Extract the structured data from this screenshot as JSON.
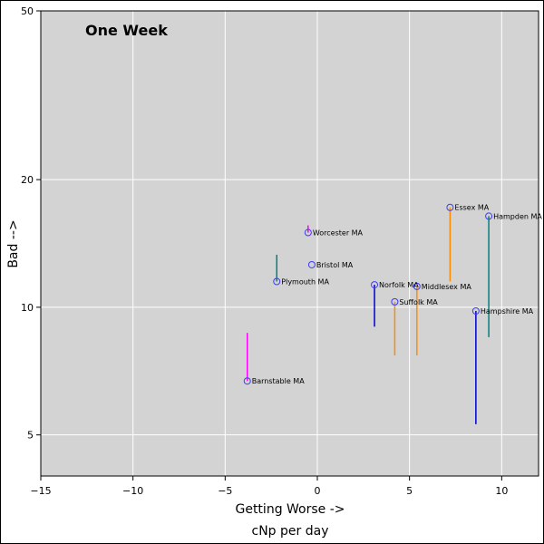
{
  "chart_data": {
    "type": "scatter",
    "title": "One Week",
    "xlabel": "Getting Worse ->",
    "xlabel2": "cNp per day",
    "ylabel": "Bad -->",
    "xlim": [
      -15,
      12
    ],
    "ylim": [
      4,
      50
    ],
    "yscale": "log",
    "xticks": [
      -15,
      -10,
      -5,
      0,
      5,
      10
    ],
    "xtick_labels": [
      "−15",
      "−10",
      "−5",
      "0",
      "5",
      "10"
    ],
    "yticks": [
      5,
      10,
      20,
      50
    ],
    "ytick_labels": [
      "5",
      "10",
      "20",
      "50"
    ],
    "grid": true,
    "marker": "open-circle",
    "marker_color": "#3b3bff",
    "background": "#d3d3d3",
    "points": [
      {
        "label": "Barnstable MA",
        "x": -3.8,
        "y": 6.7,
        "y_tail": 8.7,
        "color": "#ff00ff"
      },
      {
        "label": "Plymouth MA",
        "x": -2.2,
        "y": 11.5,
        "y_tail": 13.3,
        "color": "#008080"
      },
      {
        "label": "Worcester MA",
        "x": -0.5,
        "y": 15.0,
        "y_tail": 15.6,
        "color": "#ff00ff"
      },
      {
        "label": "Bristol MA",
        "x": -0.3,
        "y": 12.6,
        "y_tail": 12.6,
        "color": "#008080"
      },
      {
        "label": "Norfolk MA",
        "x": 3.1,
        "y": 11.3,
        "y_tail": 9.0,
        "color": "#0000cc"
      },
      {
        "label": "Suffolk MA",
        "x": 4.2,
        "y": 10.3,
        "y_tail": 7.7,
        "color": "#ff8c00"
      },
      {
        "label": "Middlesex MA",
        "x": 5.4,
        "y": 11.2,
        "y_tail": 7.7,
        "color": "#ff8c00"
      },
      {
        "label": "Essex MA",
        "x": 7.2,
        "y": 17.2,
        "y_tail": 11.5,
        "color": "#ff8c00"
      },
      {
        "label": "Hampshire MA",
        "x": 8.6,
        "y": 9.8,
        "y_tail": 5.3,
        "color": "#0000cc"
      },
      {
        "label": "Hampden MA",
        "x": 9.3,
        "y": 16.4,
        "y_tail": 8.5,
        "color": "#008080"
      }
    ]
  }
}
